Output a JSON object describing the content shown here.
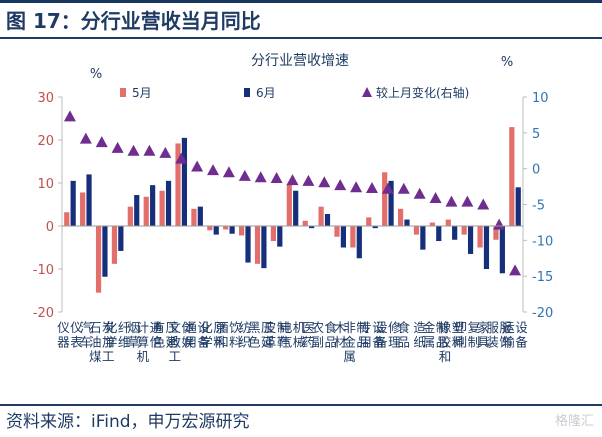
{
  "figure_title": "图 17：分行业营收当月同比",
  "source_text": "资料来源：iFind，申万宏源研究",
  "watermark_text": "格隆汇",
  "colors": {
    "series_may": "#e26f6c",
    "series_june": "#162f7b",
    "series_change": "#6f2d8f",
    "left_axis": "#c0504d",
    "right_axis": "#2e75b6",
    "title_blue": "#1f3b64"
  },
  "chart_data": {
    "type": "bar",
    "title": "分行业营收增速",
    "left_unit": "%",
    "right_unit": "%",
    "categories": [
      "仪器仪表",
      "汽车",
      "石油煤炭加工",
      "化学纤维",
      "烟草",
      "计算机通信",
      "有色压延",
      "文教工体娱",
      "通用设备",
      "化学原料",
      "酒和饮料",
      "纺织",
      "黑色压延",
      "皮革制鞋",
      "电气机械",
      "医药",
      "农副食品",
      "木材",
      "非金属制品",
      "专用设备",
      "设备修理",
      "食品",
      "造纸",
      "金属制品",
      "橡胶和塑料",
      "印刷复制",
      "家具",
      "服装服饰",
      "运输设备"
    ],
    "y_left": {
      "min": -20,
      "max": 30,
      "ticks": [
        -20,
        -10,
        0,
        10,
        20,
        30
      ]
    },
    "y_right": {
      "min": -20,
      "max": 10,
      "ticks": [
        -20,
        -15,
        -10,
        -5,
        0,
        5,
        10
      ]
    },
    "series": [
      {
        "name": "5月",
        "type": "bar",
        "axis": "left",
        "values": [
          3.2,
          7.8,
          -15.5,
          -8.8,
          4.5,
          6.8,
          8.2,
          19.2,
          4.0,
          -1.0,
          -0.8,
          -2.2,
          -8.8,
          -3.5,
          9.8,
          1.2,
          4.5,
          -2.5,
          -5.0,
          2.0,
          12.5,
          4.0,
          -2.0,
          0.8,
          1.5,
          -2.0,
          -5.0,
          -3.2,
          23.0
        ]
      },
      {
        "name": "6月",
        "type": "bar",
        "axis": "left",
        "values": [
          10.5,
          12.0,
          -11.8,
          -5.8,
          7.2,
          9.5,
          10.5,
          20.5,
          4.5,
          -2.0,
          -1.8,
          -8.5,
          -9.8,
          -4.8,
          8.2,
          -0.5,
          2.8,
          -5.0,
          -7.5,
          -0.5,
          10.5,
          1.5,
          -5.5,
          -3.5,
          -3.2,
          -6.5,
          -10.0,
          -11.0,
          9.0
        ]
      },
      {
        "name": "较上月变化(右轴)",
        "type": "scatter",
        "axis": "right",
        "marker": "triangle",
        "values": [
          7.3,
          4.2,
          3.7,
          2.9,
          2.5,
          2.5,
          2.2,
          1.4,
          0.3,
          -0.2,
          -0.5,
          -1.0,
          -1.2,
          -1.3,
          -1.6,
          -1.7,
          -1.9,
          -2.3,
          -2.6,
          -2.7,
          -2.8,
          -2.8,
          -3.5,
          -4.1,
          -4.6,
          -4.6,
          -5.0,
          -7.8,
          -14.2
        ]
      }
    ],
    "legend_position": "top-center",
    "grid": false
  }
}
